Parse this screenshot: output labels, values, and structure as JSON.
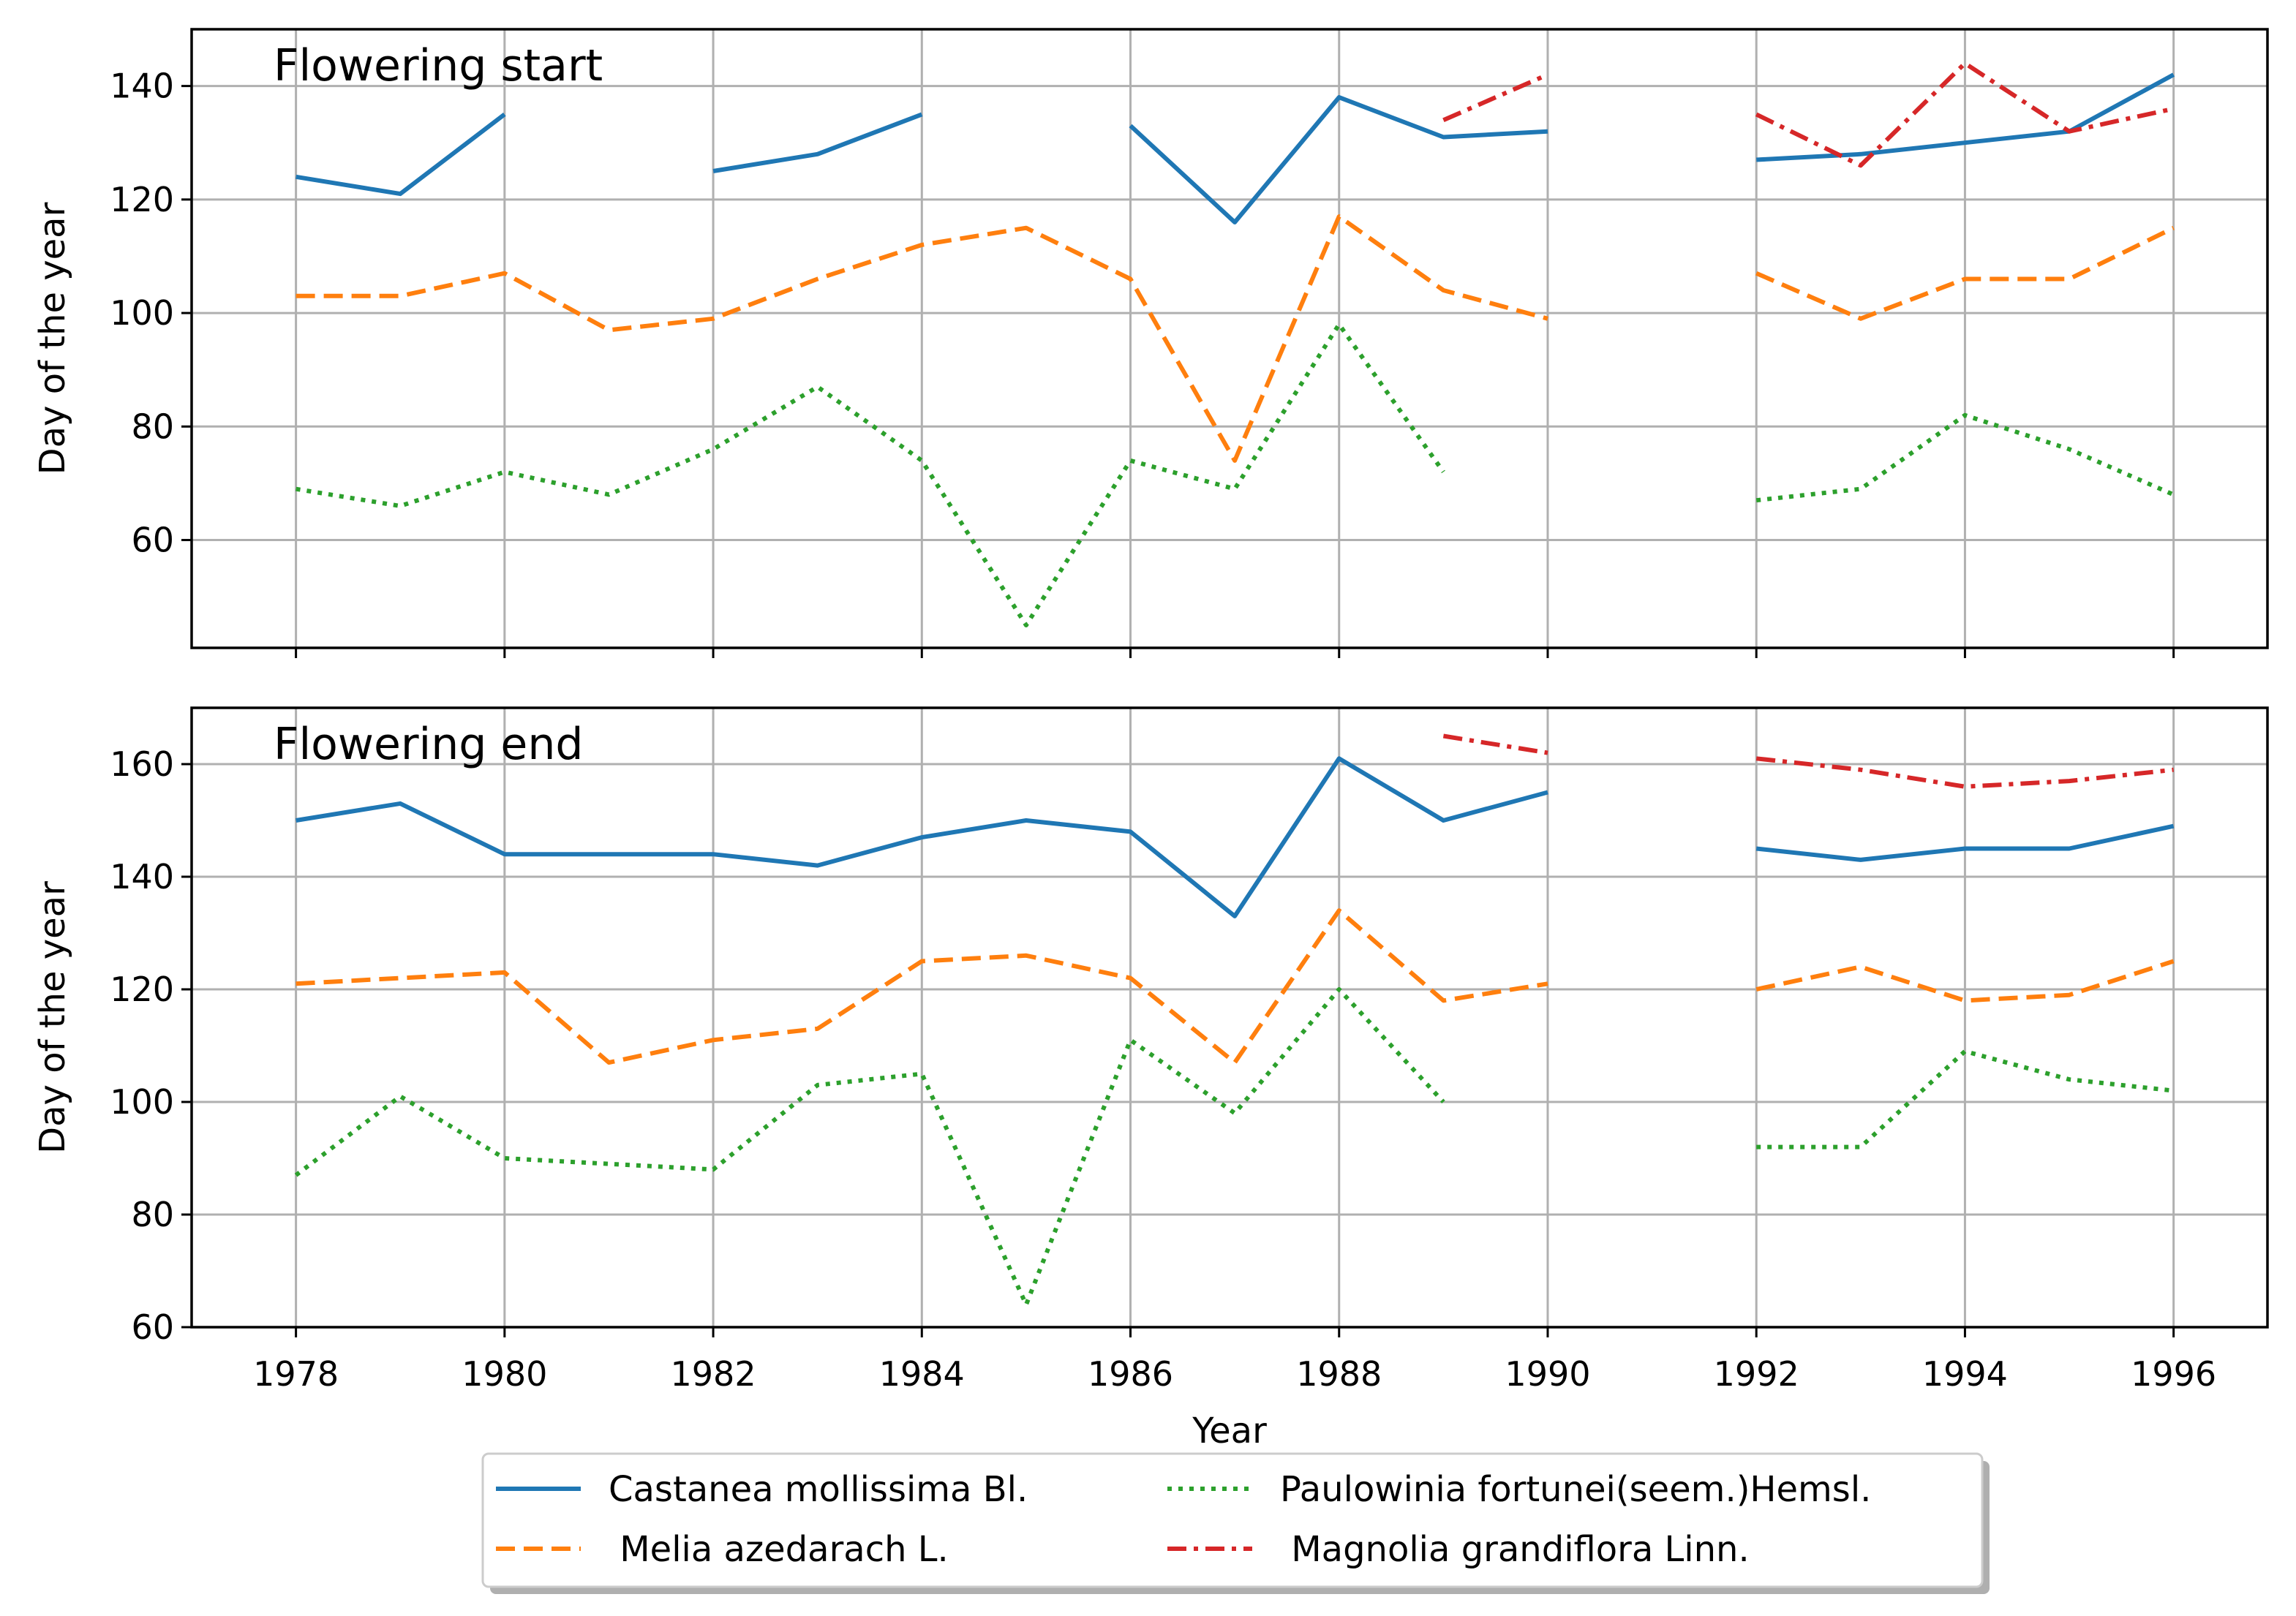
{
  "chart_data": [
    {
      "type": "line",
      "title": "Flowering start",
      "xlabel": "",
      "ylabel": "Day of the year",
      "x": [
        1978,
        1979,
        1980,
        1981,
        1982,
        1983,
        1984,
        1985,
        1986,
        1987,
        1988,
        1989,
        1990,
        1991,
        1992,
        1993,
        1994,
        1995,
        1996
      ],
      "xlim": [
        1977,
        1996.9
      ],
      "ylim": [
        41,
        150
      ],
      "yticks": [
        60,
        80,
        100,
        120,
        140
      ],
      "xticks": [
        1978,
        1980,
        1982,
        1984,
        1986,
        1988,
        1990,
        1992,
        1994,
        1996
      ],
      "show_xtick_labels": false,
      "grid": true,
      "series": [
        {
          "name": "Castanea mollissima Bl.",
          "color": "#1f77b4",
          "dash": "solid",
          "values": [
            124,
            121,
            135,
            null,
            125,
            128,
            135,
            null,
            133,
            116,
            138,
            131,
            132,
            null,
            127,
            128,
            130,
            132,
            142
          ]
        },
        {
          "name": " Melia azedarach L.",
          "color": "#ff7f0e",
          "dash": "dashed",
          "values": [
            103,
            103,
            107,
            97,
            99,
            106,
            112,
            115,
            106,
            74,
            117,
            104,
            99,
            null,
            107,
            99,
            106,
            106,
            115
          ]
        },
        {
          "name": "Paulowinia fortunei(seem.)Hemsl.",
          "color": "#2ca02c",
          "dash": "dotted",
          "values": [
            69,
            66,
            72,
            68,
            76,
            87,
            74,
            45,
            74,
            69,
            98,
            72,
            null,
            null,
            67,
            69,
            82,
            76,
            68
          ]
        },
        {
          "name": " Magnolia grandiflora Linn.",
          "color": "#d62728",
          "dash": "dashdot",
          "values": [
            null,
            null,
            null,
            null,
            null,
            null,
            null,
            null,
            null,
            null,
            null,
            134,
            142,
            null,
            135,
            126,
            144,
            132,
            136
          ]
        }
      ]
    },
    {
      "type": "line",
      "title": "Flowering end",
      "xlabel": "Year",
      "ylabel": "Day of the year",
      "x": [
        1978,
        1979,
        1980,
        1981,
        1982,
        1983,
        1984,
        1985,
        1986,
        1987,
        1988,
        1989,
        1990,
        1991,
        1992,
        1993,
        1994,
        1995,
        1996
      ],
      "xlim": [
        1977,
        1996.9
      ],
      "ylim": [
        60,
        170
      ],
      "yticks": [
        60,
        80,
        100,
        120,
        140,
        160
      ],
      "xticks": [
        1978,
        1980,
        1982,
        1984,
        1986,
        1988,
        1990,
        1992,
        1994,
        1996
      ],
      "show_xtick_labels": true,
      "grid": true,
      "series": [
        {
          "name": "Castanea mollissima Bl.",
          "color": "#1f77b4",
          "dash": "solid",
          "values": [
            150,
            153,
            144,
            144,
            144,
            142,
            147,
            150,
            148,
            133,
            161,
            150,
            155,
            null,
            145,
            143,
            145,
            145,
            149
          ]
        },
        {
          "name": " Melia azedarach L.",
          "color": "#ff7f0e",
          "dash": "dashed",
          "values": [
            121,
            122,
            123,
            107,
            111,
            113,
            125,
            126,
            122,
            107,
            134,
            118,
            121,
            null,
            120,
            124,
            118,
            119,
            125
          ]
        },
        {
          "name": "Paulowinia fortunei(seem.)Hemsl.",
          "color": "#2ca02c",
          "dash": "dotted",
          "values": [
            87,
            101,
            90,
            89,
            88,
            103,
            105,
            64,
            111,
            98,
            120,
            100,
            null,
            null,
            92,
            92,
            109,
            104,
            102
          ]
        },
        {
          "name": " Magnolia grandiflora Linn.",
          "color": "#d62728",
          "dash": "dashdot",
          "values": [
            null,
            null,
            null,
            null,
            null,
            null,
            null,
            null,
            null,
            null,
            null,
            165,
            162,
            null,
            161,
            159,
            156,
            157,
            159
          ]
        }
      ]
    }
  ],
  "legend": {
    "placement": "bottom-center",
    "entries": [
      {
        "label": "Castanea mollissima Bl.",
        "color": "#1f77b4",
        "dash": "solid"
      },
      {
        "label": "Paulowinia fortunei(seem.)Hemsl.",
        "color": "#2ca02c",
        "dash": "dotted"
      },
      {
        "label": " Melia azedarach L.",
        "color": "#ff7f0e",
        "dash": "dashed"
      },
      {
        "label": " Magnolia grandiflora Linn.",
        "color": "#d62728",
        "dash": "dashdot"
      }
    ]
  }
}
